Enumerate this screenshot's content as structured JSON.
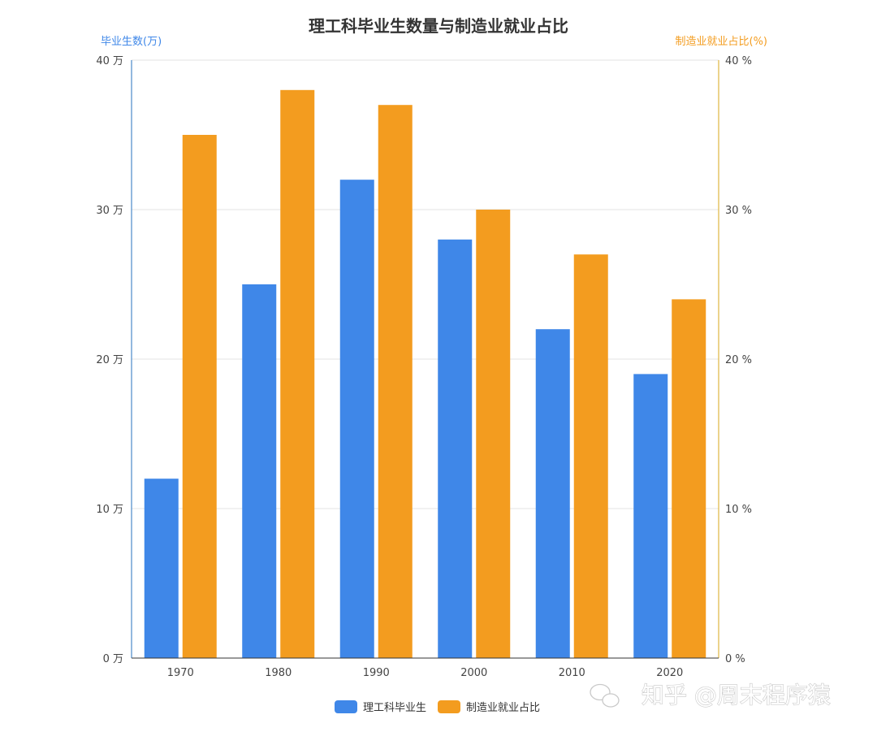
{
  "chart_data": {
    "type": "bar",
    "title": "理工科毕业生数量与制造业就业占比",
    "categories": [
      "1970",
      "1980",
      "1990",
      "2000",
      "2010",
      "2020"
    ],
    "series": [
      {
        "name": "理工科毕业生",
        "axis": "left",
        "values": [
          12,
          25,
          32,
          28,
          22,
          19
        ]
      },
      {
        "name": "制造业就业占比",
        "axis": "right",
        "values": [
          35,
          38,
          37,
          30,
          27,
          24
        ]
      }
    ],
    "y_left": {
      "label": "毕业生数(万)",
      "range": [
        0,
        40
      ],
      "ticks": [
        0,
        10,
        20,
        30,
        40
      ],
      "tick_labels": [
        "0 万",
        "10 万",
        "20 万",
        "30 万",
        "40 万"
      ]
    },
    "y_right": {
      "label": "制造业就业占比(%)",
      "range": [
        0,
        40
      ],
      "ticks": [
        0,
        10,
        20,
        30,
        40
      ],
      "tick_labels": [
        "0 %",
        "10 %",
        "20 %",
        "30 %",
        "40 %"
      ]
    },
    "grid": true,
    "legend_position": "bottom-center"
  },
  "colors": {
    "series_blue": "#3f87e8",
    "series_orange": "#f39c1f",
    "left_axis": "#4a89c8",
    "right_axis": "#e0b640",
    "grid": "#e3e3e3",
    "left_label": "#3f87e8",
    "right_label": "#f39c1f"
  },
  "watermark": {
    "text": "知乎 @周末程序猿"
  }
}
